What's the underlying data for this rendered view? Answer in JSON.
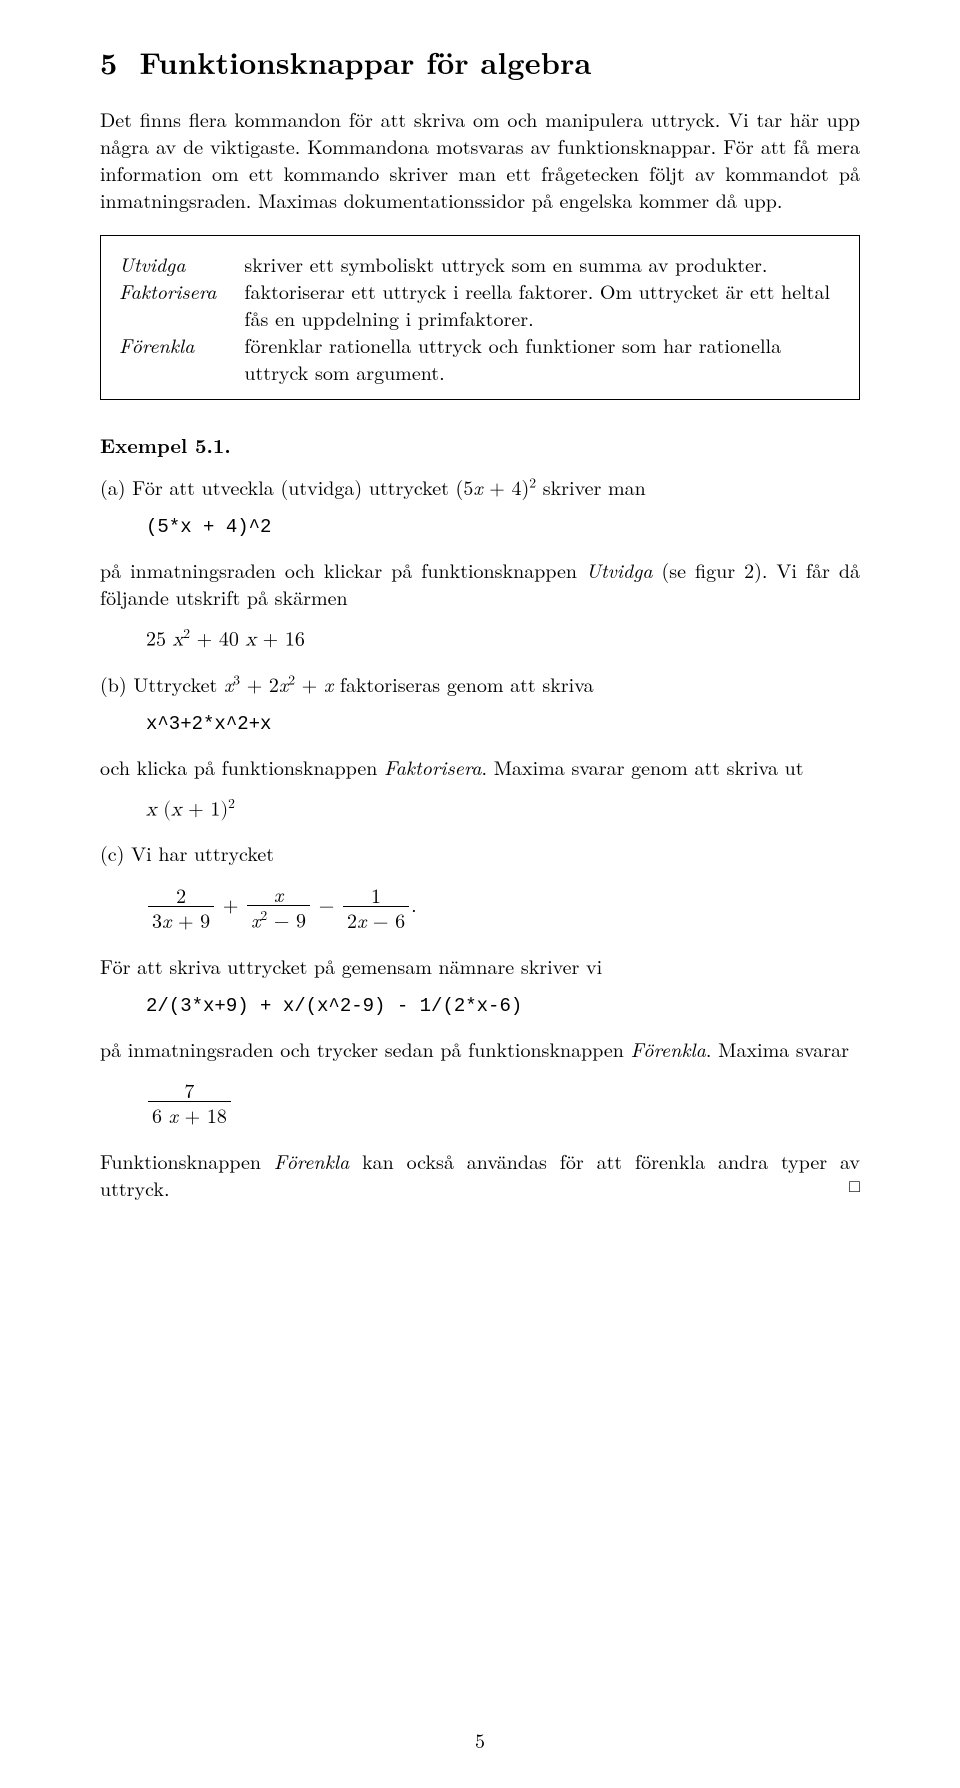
{
  "section": {
    "number": "5",
    "title": "Funktionsknappar för algebra"
  },
  "intro": "Det finns flera kommandon för att skriva om och manipulera uttryck. Vi tar här upp några av de viktigaste. Kommandona motsvaras av funktionsknappar. För att få mera information om ett kommando skriver man ett frågetecken följt av kommandot på inmatningsraden. Maximas dokumentationssidor på engelska kommer då upp.",
  "defs": [
    {
      "term": "Utvidga",
      "desc": "skriver ett symboliskt uttryck som en summa av produkter."
    },
    {
      "term": "Faktorisera",
      "desc": "faktoriserar ett uttryck i reella faktorer. Om uttrycket är ett heltal fås en uppdelning i primfaktorer."
    },
    {
      "term": "Förenkla",
      "desc": "förenklar rationella uttryck och funktioner som har rationella uttryck som argument."
    }
  ],
  "example_label": "Exempel 5.1.",
  "a": {
    "text_pre": "(a) För att utveckla (utvidga) uttrycket (5",
    "text_mid": " + 4)",
    "text_post": " skriver man",
    "code": "(5*x + 4)^2",
    "para2_pre": "på inmatningsraden och klickar på funktionsknappen ",
    "para2_btn": "Utvidga",
    "para2_post": " (se figur 2). Vi får då följande utskrift på skärmen",
    "result_lhs_coef1": "25 ",
    "result_mid": " + 40 ",
    "result_end": " + 16"
  },
  "b": {
    "text_pre": "(b) Uttrycket ",
    "text_mid1": " + 2",
    "text_mid2": " + ",
    "text_post": " faktoriseras genom att skriva",
    "code": "x^3+2*x^2+x",
    "para2_pre": "och klicka på funktionsknappen ",
    "para2_btn": "Faktorisera",
    "para2_post": ". Maxima svarar genom att skriva ut",
    "result_pre": " (",
    "result_mid": " + 1)"
  },
  "c": {
    "text": "(c) Vi har uttrycket",
    "frac1_num": "2",
    "frac1_den_pre": "3",
    "frac1_den_post": " + 9",
    "plus": " + ",
    "frac2_den_pre": "",
    "frac2_den_post": " − 9",
    "minus": " − ",
    "frac3_num": "1",
    "frac3_den_pre": "2",
    "frac3_den_post": " − 6",
    "dot": ".",
    "para2": "För att skriva uttrycket på gemensam nämnare skriver vi",
    "code": "2/(3*x+9) + x/(x^2-9) - 1/(2*x-6)",
    "para3_pre": "på inmatningsraden och trycker sedan på funktionsknappen ",
    "para3_btn": "Förenkla",
    "para3_post": ". Maxima svarar",
    "result_num": "7",
    "result_den_pre": "6 ",
    "result_den_post": " + 18"
  },
  "closing_pre": "Funktionsknappen ",
  "closing_btn": "Förenkla",
  "closing_post": " kan också användas för att förenkla andra typer av uttryck.",
  "qed": "□",
  "page_number": "5",
  "x": "x"
}
